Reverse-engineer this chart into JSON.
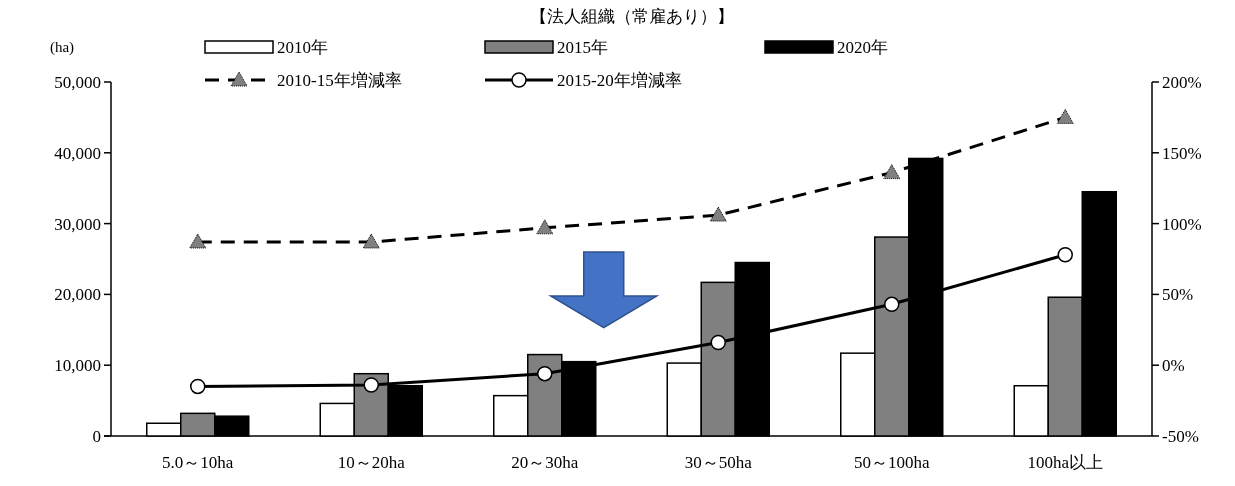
{
  "chart_data": {
    "type": "bar",
    "title": "【法人組織（常雇あり）】",
    "ylabel": "(ha)",
    "categories": [
      "5.0～10ha",
      "10～20ha",
      "20～30ha",
      "30～50ha",
      "50～100ha",
      "100ha以上"
    ],
    "series": [
      {
        "name": "2010年",
        "color": "#ffffff",
        "values": [
          1800,
          4600,
          5700,
          10300,
          11700,
          7100
        ]
      },
      {
        "name": "2015年",
        "color": "#808080",
        "values": [
          3200,
          8800,
          11500,
          21700,
          28100,
          19600
        ]
      },
      {
        "name": "2020年",
        "color": "#000000",
        "values": [
          2800,
          7100,
          10500,
          24500,
          39200,
          34500
        ]
      },
      {
        "name": "2010-15年増減率",
        "type": "line",
        "axis": "y2",
        "color": "#000000",
        "marker": "triangle",
        "line_style": "dashed",
        "values": [
          87,
          87,
          97,
          106,
          136,
          175
        ]
      },
      {
        "name": "2015-20年増減率",
        "type": "line",
        "axis": "y2",
        "color": "#000000",
        "marker": "circle",
        "line_style": "solid",
        "values": [
          -15,
          -14,
          -6,
          16,
          43,
          78
        ]
      }
    ],
    "ylim": [
      0,
      50000
    ],
    "yticks": [
      0,
      {
        "value": 10000,
        "label": "10,000"
      },
      {
        "value": 20000,
        "label": "20,000"
      },
      {
        "value": 30000,
        "label": "30,000"
      },
      {
        "value": 40000,
        "label": "40,000"
      },
      {
        "value": 50000,
        "label": "50,000"
      }
    ],
    "y2lim": [
      -50,
      200
    ],
    "y2ticks": [
      {
        "value": -50,
        "label": "-50%"
      },
      {
        "value": 0,
        "label": "0%"
      },
      {
        "value": 50,
        "label": "50%"
      },
      {
        "value": 100,
        "label": "100%"
      },
      {
        "value": 150,
        "label": "150%"
      },
      {
        "value": 200,
        "label": "200%"
      }
    ],
    "legend": "top",
    "grid": false
  }
}
